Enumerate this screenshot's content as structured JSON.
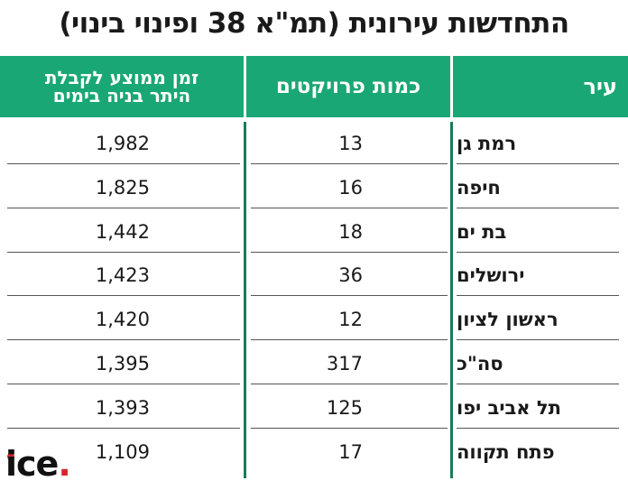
{
  "chart_data": {
    "type": "table",
    "title": "התחדשות עירונית (תמ\"א 38 ופינוי בינוי)",
    "columns": [
      "עיר",
      "כמות פרויקטים",
      "זמן ממוצע לקבלת היתר בניה בימים"
    ],
    "header_days_line1": "זמן ממוצע לקבלת",
    "header_days_line2": "היתר בניה בימים",
    "rows": [
      {
        "city": "רמת גן",
        "projects": "13",
        "days": "1,982"
      },
      {
        "city": "חיפה",
        "projects": "16",
        "days": "1,825"
      },
      {
        "city": "בת ים",
        "projects": "18",
        "days": "1,442"
      },
      {
        "city": "ירושלים",
        "projects": "36",
        "days": "1,423"
      },
      {
        "city": "ראשון לציון",
        "projects": "12",
        "days": "1,420"
      },
      {
        "city": "סה\"כ",
        "projects": "317",
        "days": "1,395"
      },
      {
        "city": "תל אביב יפו",
        "projects": "125",
        "days": "1,393"
      },
      {
        "city": "פתח תקווה",
        "projects": "17",
        "days": "1,109"
      }
    ]
  },
  "logo": {
    "text": "ice",
    "dot": "."
  },
  "colors": {
    "header_bg": "#1aa776",
    "header_text": "#ffffff",
    "divider": "#1a7a5c",
    "logo_accent": "#d6262d"
  }
}
